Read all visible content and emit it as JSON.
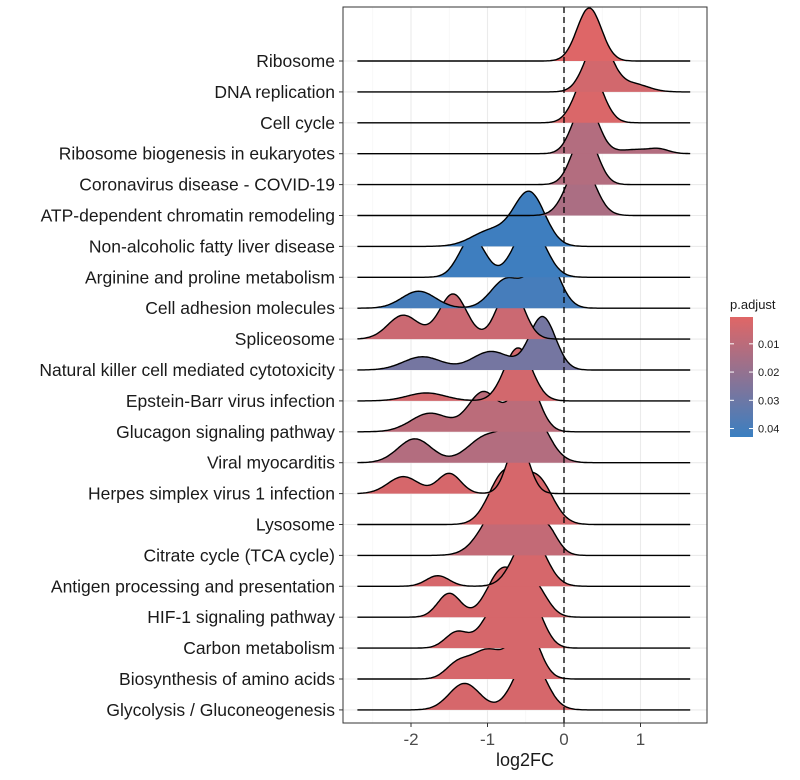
{
  "chart_data": {
    "type": "ridgeline",
    "xlabel": "log2FC",
    "ylabel": "",
    "xlim": [
      -2.9,
      1.85
    ],
    "xticks": [
      -2,
      -1,
      0,
      1
    ],
    "xtick_labels": [
      "-2",
      "-1",
      "0",
      "1"
    ],
    "reference_line_x": 0,
    "grid": true,
    "legend": {
      "title": "p.adjust",
      "position": "right",
      "range": [
        0.0005,
        0.043
      ],
      "ticks": [
        0.01,
        0.02,
        0.03,
        0.04
      ],
      "tick_labels": [
        "0.01",
        "0.02",
        "0.03",
        "0.04"
      ],
      "low_color": "#e06666",
      "high_color": "#3a7fc1"
    },
    "series": [
      {
        "name": "Ribosome",
        "p_adjust": 0.001,
        "x_min": -2.7,
        "x_max": 1.65,
        "peaks": [
          [
            0.33,
            0.16,
            1.0
          ]
        ]
      },
      {
        "name": "DNA replication",
        "p_adjust": 0.004,
        "x_min": -2.7,
        "x_max": 1.65,
        "peaks": [
          [
            0.45,
            0.17,
            1.0
          ],
          [
            0.9,
            0.2,
            0.15
          ]
        ]
      },
      {
        "name": "Cell cycle",
        "p_adjust": 0.002,
        "x_min": -2.7,
        "x_max": 1.65,
        "peaks": [
          [
            0.33,
            0.17,
            1.0
          ]
        ]
      },
      {
        "name": "Ribosome biogenesis in eukaryotes",
        "p_adjust": 0.012,
        "x_min": -2.7,
        "x_max": 1.65,
        "peaks": [
          [
            0.28,
            0.16,
            1.0
          ],
          [
            0.95,
            0.25,
            0.08
          ],
          [
            1.25,
            0.12,
            0.06
          ]
        ]
      },
      {
        "name": "Coronavirus disease - COVID-19",
        "p_adjust": 0.012,
        "x_min": -2.7,
        "x_max": 1.65,
        "peaks": [
          [
            0.27,
            0.16,
            1.0
          ]
        ]
      },
      {
        "name": "ATP-dependent chromatin remodeling",
        "p_adjust": 0.014,
        "x_min": -2.7,
        "x_max": 1.65,
        "peaks": [
          [
            0.22,
            0.18,
            1.0
          ]
        ]
      },
      {
        "name": "Non-alcoholic fatty liver disease",
        "p_adjust": 0.042,
        "x_min": -2.7,
        "x_max": 1.65,
        "peaks": [
          [
            -0.45,
            0.2,
            1.0
          ],
          [
            -0.95,
            0.25,
            0.3
          ]
        ]
      },
      {
        "name": "Arginine and proline metabolism",
        "p_adjust": 0.042,
        "x_min": -2.7,
        "x_max": 1.65,
        "peaks": [
          [
            -0.45,
            0.2,
            1.0
          ],
          [
            -1.2,
            0.17,
            0.75
          ]
        ]
      },
      {
        "name": "Cell adhesion molecules",
        "p_adjust": 0.04,
        "x_min": -2.7,
        "x_max": 1.65,
        "peaks": [
          [
            -0.25,
            0.18,
            1.0
          ],
          [
            -0.75,
            0.2,
            0.55
          ],
          [
            -1.9,
            0.22,
            0.32
          ]
        ]
      },
      {
        "name": "Spliceosome",
        "p_adjust": 0.006,
        "x_min": -2.7,
        "x_max": 1.65,
        "peaks": [
          [
            -0.7,
            0.17,
            1.0
          ],
          [
            -1.45,
            0.18,
            0.85
          ],
          [
            -2.1,
            0.2,
            0.45
          ]
        ]
      },
      {
        "name": "Natural killer cell mediated cytotoxicity",
        "p_adjust": 0.028,
        "x_min": -2.7,
        "x_max": 1.65,
        "peaks": [
          [
            -0.28,
            0.17,
            1.0
          ],
          [
            -0.95,
            0.25,
            0.35
          ],
          [
            -1.85,
            0.25,
            0.25
          ]
        ]
      },
      {
        "name": "Epstein-Barr virus infection",
        "p_adjust": 0.004,
        "x_min": -2.7,
        "x_max": 1.65,
        "peaks": [
          [
            -0.6,
            0.18,
            1.0
          ],
          [
            -1.8,
            0.25,
            0.15
          ]
        ]
      },
      {
        "name": "Glucagon signaling pathway",
        "p_adjust": 0.01,
        "x_min": -2.7,
        "x_max": 1.65,
        "peaks": [
          [
            -0.5,
            0.17,
            1.0
          ],
          [
            -1.05,
            0.2,
            0.75
          ],
          [
            -1.75,
            0.25,
            0.35
          ]
        ]
      },
      {
        "name": "Viral myocarditis",
        "p_adjust": 0.012,
        "x_min": -2.7,
        "x_max": 1.65,
        "peaks": [
          [
            -0.45,
            0.22,
            1.0
          ],
          [
            -1.0,
            0.25,
            0.5
          ],
          [
            -1.95,
            0.22,
            0.45
          ]
        ]
      },
      {
        "name": "Herpes simplex virus 1 infection",
        "p_adjust": 0.003,
        "x_min": -2.7,
        "x_max": 1.65,
        "peaks": [
          [
            -0.6,
            0.14,
            1.0
          ],
          [
            -1.5,
            0.15,
            0.38
          ],
          [
            -2.1,
            0.2,
            0.32
          ]
        ]
      },
      {
        "name": "Lysosome",
        "p_adjust": 0.003,
        "x_min": -2.7,
        "x_max": 1.65,
        "peaks": [
          [
            -0.78,
            0.2,
            0.95
          ],
          [
            -0.35,
            0.2,
            0.85
          ]
        ]
      },
      {
        "name": "Citrate cycle (TCA cycle)",
        "p_adjust": 0.008,
        "x_min": -2.7,
        "x_max": 1.65,
        "peaks": [
          [
            -0.8,
            0.25,
            1.0
          ],
          [
            -0.25,
            0.15,
            0.55
          ]
        ]
      },
      {
        "name": "Antigen processing and presentation",
        "p_adjust": 0.003,
        "x_min": -2.7,
        "x_max": 1.65,
        "peaks": [
          [
            -0.45,
            0.2,
            1.0
          ],
          [
            -1.65,
            0.15,
            0.2
          ]
        ]
      },
      {
        "name": "HIF-1 signaling pathway",
        "p_adjust": 0.003,
        "x_min": -2.7,
        "x_max": 1.65,
        "peaks": [
          [
            -0.8,
            0.2,
            0.9
          ],
          [
            -0.4,
            0.17,
            0.6
          ],
          [
            -1.5,
            0.15,
            0.45
          ]
        ]
      },
      {
        "name": "Carbon metabolism",
        "p_adjust": 0.003,
        "x_min": -2.7,
        "x_max": 1.65,
        "peaks": [
          [
            -0.85,
            0.2,
            0.85
          ],
          [
            -0.45,
            0.17,
            0.9
          ],
          [
            -1.4,
            0.15,
            0.3
          ]
        ]
      },
      {
        "name": "Biosynthesis of amino acids",
        "p_adjust": 0.003,
        "x_min": -2.7,
        "x_max": 1.65,
        "peaks": [
          [
            -0.5,
            0.17,
            1.0
          ],
          [
            -1.0,
            0.22,
            0.55
          ],
          [
            -1.4,
            0.15,
            0.25
          ]
        ]
      },
      {
        "name": "Glycolysis / Gluconeogenesis",
        "p_adjust": 0.003,
        "x_min": -2.7,
        "x_max": 1.65,
        "peaks": [
          [
            -0.45,
            0.2,
            1.0
          ],
          [
            -1.3,
            0.2,
            0.5
          ]
        ]
      }
    ]
  }
}
